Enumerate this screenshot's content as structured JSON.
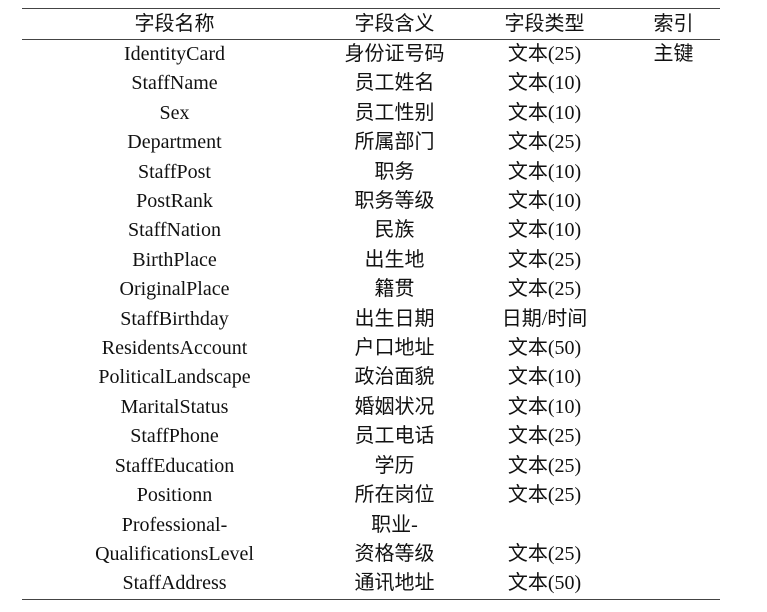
{
  "table": {
    "headers": [
      "字段名称",
      "字段含义",
      "字段类型",
      "索引"
    ],
    "rows": [
      {
        "name": "IdentityCard",
        "meaning": "身份证号码",
        "type": "文本(25)",
        "index": "主键"
      },
      {
        "name": "StaffName",
        "meaning": "员工姓名",
        "type": "文本(10)",
        "index": ""
      },
      {
        "name": "Sex",
        "meaning": "员工性别",
        "type": "文本(10)",
        "index": ""
      },
      {
        "name": "Department",
        "meaning": "所属部门",
        "type": "文本(25)",
        "index": ""
      },
      {
        "name": "StaffPost",
        "meaning": "职务",
        "type": "文本(10)",
        "index": ""
      },
      {
        "name": "PostRank",
        "meaning": "职务等级",
        "type": "文本(10)",
        "index": ""
      },
      {
        "name": "StaffNation",
        "meaning": "民族",
        "type": "文本(10)",
        "index": ""
      },
      {
        "name": "BirthPlace",
        "meaning": "出生地",
        "type": "文本(25)",
        "index": ""
      },
      {
        "name": "OriginalPlace",
        "meaning": "籍贯",
        "type": "文本(25)",
        "index": ""
      },
      {
        "name": "StaffBirthday",
        "meaning": "出生日期",
        "type": "日期/时间",
        "index": ""
      },
      {
        "name": "ResidentsAccount",
        "meaning": "户口地址",
        "type": "文本(50)",
        "index": ""
      },
      {
        "name": "PoliticalLandscape",
        "meaning": "政治面貌",
        "type": "文本(10)",
        "index": ""
      },
      {
        "name": "MaritalStatus",
        "meaning": "婚姻状况",
        "type": "文本(10)",
        "index": ""
      },
      {
        "name": "StaffPhone",
        "meaning": "员工电话",
        "type": "文本(25)",
        "index": ""
      },
      {
        "name": "StaffEducation",
        "meaning": "学历",
        "type": "文本(25)",
        "index": ""
      },
      {
        "name": "Positionn",
        "meaning": "所在岗位",
        "type": "文本(25)",
        "index": ""
      },
      {
        "name": "Professional-\nQualificationsLevel",
        "meaning": "职业-\n资格等级",
        "type": "文本(25)",
        "index": ""
      },
      {
        "name": "StaffAddress",
        "meaning": "通讯地址",
        "type": "文本(50)",
        "index": ""
      }
    ]
  }
}
